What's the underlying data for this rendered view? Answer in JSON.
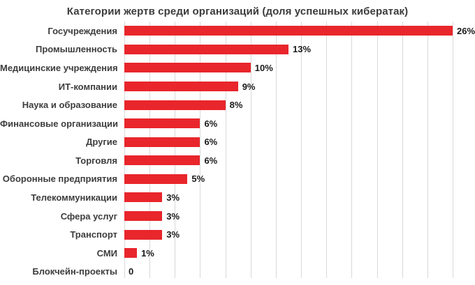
{
  "chart_data": {
    "type": "bar",
    "orientation": "horizontal",
    "title": "Категории жертв среди организаций (доля успешных кибератак)",
    "categories": [
      "Госучреждения",
      "Промышленность",
      "Медицинские учреждения",
      "ИТ-компании",
      "Наука и образование",
      "Финансовые организации",
      "Другие",
      "Торговля",
      "Оборонные предприятия",
      "Телекоммуникации",
      "Сфера услуг",
      "Транспорт",
      "СМИ",
      "Блокчейн-проекты"
    ],
    "values": [
      26,
      13,
      10,
      9,
      8,
      6,
      6,
      6,
      5,
      3,
      3,
      3,
      1,
      0
    ],
    "value_labels": [
      "26%",
      "13%",
      "10%",
      "9%",
      "8%",
      "6%",
      "6%",
      "6%",
      "5%",
      "3%",
      "3%",
      "3%",
      "1%",
      "0"
    ],
    "xlabel": "",
    "ylabel": "",
    "xlim": [
      0,
      26
    ],
    "grid": true,
    "grid_step": 2,
    "legend": "none",
    "bar_color": "#e8262c",
    "gridline_color": "#d9d9d9"
  }
}
